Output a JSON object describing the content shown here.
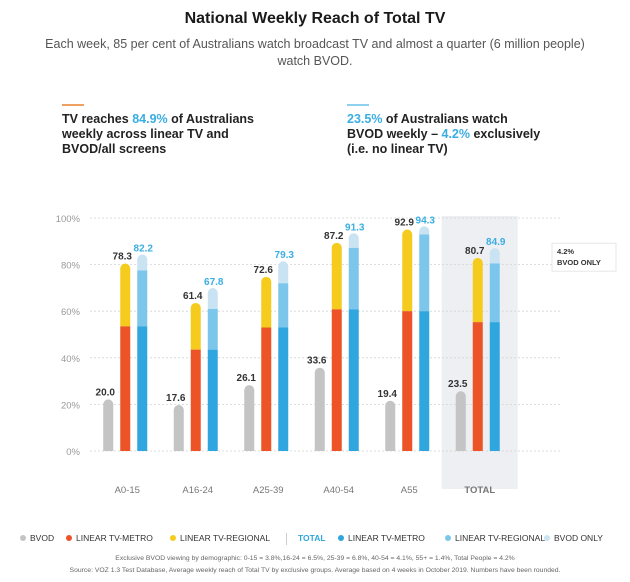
{
  "title": "National Weekly Reach of Total TV",
  "subtitle": "Each week, 85 per cent of Australians watch broadcast TV and almost a quarter (6 million people) watch BVOD.",
  "stat_left": {
    "line1_pre": "TV reaches ",
    "line1_hl": "84.9%",
    "line1_post": " of Australians",
    "line2": "weekly across linear TV and",
    "line3": "BVOD/all screens"
  },
  "stat_right": {
    "line1_hl": "23.5%",
    "line1_post": " of Australians watch",
    "line2_pre": "BVOD weekly – ",
    "line2_hl": "4.2%",
    "line2_post": " exclusively",
    "line3": "(i.e. no linear TV)"
  },
  "colors": {
    "bvod": "#c4c4c4",
    "linear_metro": "#ec5428",
    "linear_regional": "#f5cc1e",
    "total_metro": "#2fa6de",
    "total_regional": "#7cc6eb",
    "total_bvod_only": "#c9e3f3",
    "accent_orange": "#f0a060",
    "accent_blue": "#8fd0ee",
    "highlight": "#3aaee2",
    "total_panel": "#eeeff3"
  },
  "annotation": {
    "line1": "4.2%",
    "line2": "BVOD ONLY"
  },
  "chart_data": {
    "type": "bar",
    "stacked": true,
    "categories": [
      "A0-15",
      "A16-24",
      "A25-39",
      "A40-54",
      "A55",
      "TOTAL"
    ],
    "ylim": [
      0,
      100
    ],
    "yticks": [
      "0%",
      "20%",
      "40%",
      "60%",
      "80%",
      "100%"
    ],
    "grid": true,
    "groups": [
      {
        "bvod": 20.0,
        "linear_metro": 53.5,
        "linear_total": 78.3,
        "total_metro": 53.5,
        "total_regional": 77.5,
        "total": 82.2
      },
      {
        "bvod": 17.6,
        "linear_metro": 43.5,
        "linear_total": 61.4,
        "total_metro": 43.5,
        "total_regional": 61.0,
        "total": 67.8
      },
      {
        "bvod": 26.1,
        "linear_metro": 53.0,
        "linear_total": 72.6,
        "total_metro": 53.0,
        "total_regional": 72.0,
        "total": 79.3
      },
      {
        "bvod": 33.6,
        "linear_metro": 60.8,
        "linear_total": 87.2,
        "total_metro": 60.8,
        "total_regional": 87.2,
        "total": 91.3
      },
      {
        "bvod": 19.4,
        "linear_metro": 60.0,
        "linear_total": 92.9,
        "total_metro": 60.0,
        "total_regional": 92.9,
        "total": 94.3
      },
      {
        "bvod": 23.5,
        "linear_metro": 55.3,
        "linear_total": 80.7,
        "total_metro": 55.3,
        "total_regional": 80.5,
        "total": 84.9
      }
    ],
    "legend": [
      {
        "label": "BVOD",
        "color": "#c4c4c4"
      },
      {
        "label": "LINEAR TV-METRO",
        "color": "#ec5428"
      },
      {
        "label": "LINEAR TV-REGIONAL",
        "color": "#f5cc1e"
      },
      {
        "label": "TOTAL",
        "color": "",
        "is_header": true
      },
      {
        "label": "LINEAR TV-METRO",
        "color": "#2fa6de"
      },
      {
        "label": "LINEAR TV-REGIONAL",
        "color": "#7cc6eb"
      },
      {
        "label": "BVOD ONLY",
        "color": "#c9e3f3"
      }
    ]
  },
  "footnotes": {
    "line1": "Exclusive BVOD viewing by demographic: 0-15 = 3.8%,16-24 = 6.5%, 25-39 = 6.8%, 40-54 = 4.1%, 55+ = 1.4%, Total People = 4.2%",
    "line2": "Source: VOZ 1.3 Test Database, Average weekly reach of Total TV by exclusive groups. Average based on 4 weeks in October 2019. Numbers have been rounded."
  }
}
